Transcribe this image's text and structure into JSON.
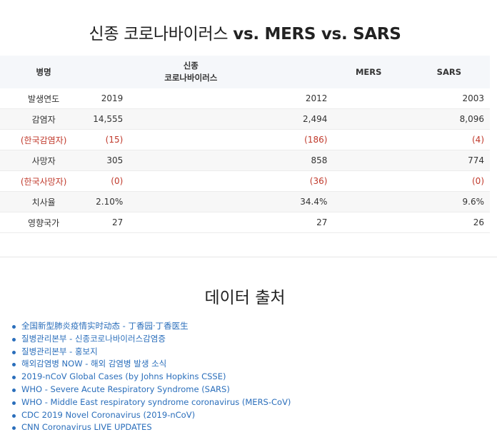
{
  "title_korean": "신종 코로나바이러스",
  "title_latin": "vs. MERS vs. SARS",
  "table": {
    "headers": [
      "병명",
      "신종\n코로나바이러스",
      "MERS",
      "SARS"
    ],
    "header_line1": "신종",
    "header_line2": "코로나바이러스",
    "rows": [
      {
        "label": "발생연도",
        "values": [
          "2019",
          "2012",
          "2003"
        ],
        "highlight": false
      },
      {
        "label": "감염자",
        "values": [
          "14,555",
          "2,494",
          "8,096"
        ],
        "highlight": false
      },
      {
        "label": "(한국감염자)",
        "values": [
          "(15)",
          "(186)",
          "(4)"
        ],
        "highlight": true
      },
      {
        "label": "사망자",
        "values": [
          "305",
          "858",
          "774"
        ],
        "highlight": false
      },
      {
        "label": "(한국사망자)",
        "values": [
          "(0)",
          "(36)",
          "(0)"
        ],
        "highlight": true
      },
      {
        "label": "치사율",
        "values": [
          "2.10%",
          "34.4%",
          "9.6%"
        ],
        "highlight": false
      },
      {
        "label": "영향국가",
        "values": [
          "27",
          "27",
          "26"
        ],
        "highlight": false
      }
    ]
  },
  "sources": {
    "title": "데이터 출처",
    "links": [
      "全国新型肺炎疫情实时动态 - 丁香园·丁香医生",
      "질병관리본부 - 신종코로나바이러스감염증",
      "질병관리본부 - 홍보지",
      "해외감염병 NOW - 해외 감염병 발생 소식",
      "2019-nCoV Global Cases (by Johns Hopkins CSSE)",
      "WHO - Severe Acute Respiratory Syndrome (SARS)",
      "WHO - Middle East respiratory syndrome coronavirus (MERS-CoV)",
      "CDC 2019 Novel Coronavirus (2019-nCoV)",
      "CNN Coronavirus LIVE UPDATES"
    ]
  },
  "colors": {
    "highlight_red": "#c0392b",
    "link_blue": "#2a6ebb",
    "header_bg": "#f5f7fa"
  }
}
